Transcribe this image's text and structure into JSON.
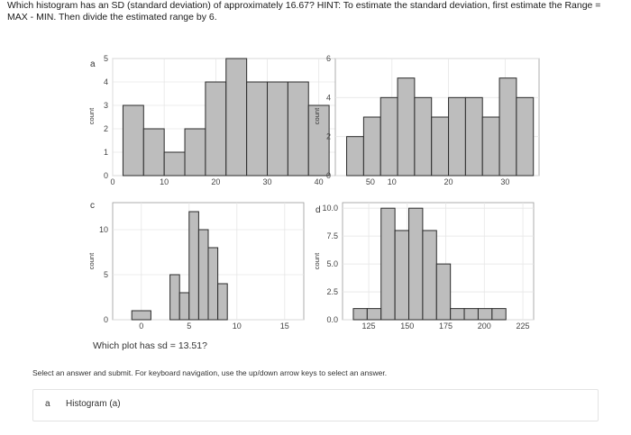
{
  "question": {
    "line1": "Which histogram has an SD (standard deviation) of approximately 16.67? HINT: To estimate the standard deviation, first estimate the Range =",
    "line2": "MAX - MIN. Then divide the estimated range by 6."
  },
  "figure_subquestion": "Which plot has sd = 13.51?",
  "instructions": "Select an answer and submit. For keyboard navigation, use the up/down arrow keys to select an answer.",
  "answer_option": {
    "letter": "a",
    "label": "Histogram (a)"
  },
  "colors": {
    "bar_fill": "#bdbdbd",
    "bar_stroke": "#2b2b2b",
    "grid": "#e6e6e6",
    "frame": "#9a9a9a"
  },
  "chart_data": [
    {
      "type": "bar",
      "panel": "a",
      "ylabel": "count",
      "xlim": [
        0,
        53
      ],
      "ylim": [
        0,
        5
      ],
      "xticks": [
        "0",
        "10",
        "20",
        "30",
        "40",
        "50"
      ],
      "yticks": [
        "0",
        "1",
        "2",
        "3",
        "4",
        "5"
      ],
      "bins": [
        {
          "x0": 2,
          "x1": 6,
          "count": 3
        },
        {
          "x0": 6,
          "x1": 10,
          "count": 2
        },
        {
          "x0": 10,
          "x1": 14,
          "count": 1
        },
        {
          "x0": 14,
          "x1": 18,
          "count": 2
        },
        {
          "x0": 18,
          "x1": 22,
          "count": 4
        },
        {
          "x0": 22,
          "x1": 26,
          "count": 5
        },
        {
          "x0": 26,
          "x1": 30,
          "count": 4
        },
        {
          "x0": 30,
          "x1": 34,
          "count": 4
        },
        {
          "x0": 34,
          "x1": 38,
          "count": 4
        },
        {
          "x0": 38,
          "x1": 42,
          "count": 3
        }
      ]
    },
    {
      "type": "bar",
      "panel": "b",
      "ylabel": "count",
      "xlim": [
        0,
        36
      ],
      "ylim": [
        0,
        6
      ],
      "xticks": [
        "10",
        "20",
        "30"
      ],
      "yticks": [
        "0",
        "2",
        "4",
        "6"
      ],
      "bins": [
        {
          "x0": 2,
          "x1": 5,
          "count": 2
        },
        {
          "x0": 5,
          "x1": 8,
          "count": 3
        },
        {
          "x0": 8,
          "x1": 11,
          "count": 4
        },
        {
          "x0": 11,
          "x1": 14,
          "count": 5
        },
        {
          "x0": 14,
          "x1": 17,
          "count": 4
        },
        {
          "x0": 17,
          "x1": 20,
          "count": 3
        },
        {
          "x0": 20,
          "x1": 23,
          "count": 4
        },
        {
          "x0": 23,
          "x1": 26,
          "count": 4
        },
        {
          "x0": 26,
          "x1": 29,
          "count": 3
        },
        {
          "x0": 29,
          "x1": 32,
          "count": 5
        },
        {
          "x0": 32,
          "x1": 35,
          "count": 4
        }
      ]
    },
    {
      "type": "bar",
      "panel": "c",
      "ylabel": "count",
      "xlim": [
        -3,
        17
      ],
      "ylim": [
        0,
        13
      ],
      "xticks": [
        "0",
        "5",
        "10",
        "15"
      ],
      "yticks": [
        "0",
        "5",
        "10"
      ],
      "bins": [
        {
          "x0": -1,
          "x1": 1,
          "count": 1
        },
        {
          "x0": 1,
          "x1": 3,
          "count": 0
        },
        {
          "x0": 3,
          "x1": 4,
          "count": 5
        },
        {
          "x0": 4,
          "x1": 5,
          "count": 3
        },
        {
          "x0": 5,
          "x1": 6,
          "count": 12
        },
        {
          "x0": 6,
          "x1": 7,
          "count": 10
        },
        {
          "x0": 7,
          "x1": 8,
          "count": 8
        },
        {
          "x0": 8,
          "x1": 9,
          "count": 4
        },
        {
          "x0": 9,
          "x1": 10,
          "count": 0
        }
      ]
    },
    {
      "type": "bar",
      "panel": "d",
      "ylabel": "count",
      "xlim": [
        108,
        232
      ],
      "ylim": [
        0,
        10.5
      ],
      "xticks": [
        "125",
        "150",
        "175",
        "200",
        "225"
      ],
      "yticks": [
        "0.0",
        "2.5",
        "5.0",
        "7.5",
        "10.0"
      ],
      "bins": [
        {
          "x0": 115,
          "x1": 124,
          "count": 1
        },
        {
          "x0": 124,
          "x1": 133,
          "count": 1
        },
        {
          "x0": 133,
          "x1": 142,
          "count": 10
        },
        {
          "x0": 142,
          "x1": 151,
          "count": 8
        },
        {
          "x0": 151,
          "x1": 160,
          "count": 10
        },
        {
          "x0": 160,
          "x1": 169,
          "count": 8
        },
        {
          "x0": 169,
          "x1": 178,
          "count": 5
        },
        {
          "x0": 178,
          "x1": 187,
          "count": 1
        },
        {
          "x0": 187,
          "x1": 196,
          "count": 1
        },
        {
          "x0": 196,
          "x1": 205,
          "count": 1
        },
        {
          "x0": 205,
          "x1": 214,
          "count": 1
        }
      ]
    }
  ]
}
